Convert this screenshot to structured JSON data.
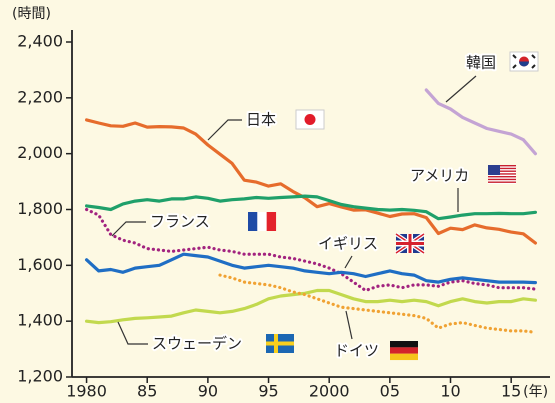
{
  "chart_data": {
    "type": "line",
    "y_label": "(時間)",
    "x_label": "(年)",
    "xlim": [
      1978.8,
      2018.2
    ],
    "ylim": [
      1200,
      2400
    ],
    "xticks": [
      1980,
      {
        "value": 1985,
        "label": "85"
      },
      {
        "value": 1990,
        "label": "90"
      },
      {
        "value": 1995,
        "label": "95"
      },
      2000,
      {
        "value": 2005,
        "label": "05"
      },
      {
        "value": 2010,
        "label": "10"
      },
      {
        "value": 2015,
        "label": "15"
      }
    ],
    "yticks": [
      {
        "value": 1200,
        "label": "1,200"
      },
      {
        "value": 1400,
        "label": "1,400"
      },
      {
        "value": 1600,
        "label": "1,600"
      },
      {
        "value": 1800,
        "label": "1,800"
      },
      {
        "value": 2000,
        "label": "2,000"
      },
      {
        "value": 2200,
        "label": "2,200"
      },
      {
        "value": 2400,
        "label": "2,400"
      }
    ],
    "x": [
      1980,
      1981,
      1982,
      1983,
      1984,
      1985,
      1986,
      1987,
      1988,
      1989,
      1990,
      1991,
      1992,
      1993,
      1994,
      1995,
      1996,
      1997,
      1998,
      1999,
      2000,
      2001,
      2002,
      2003,
      2004,
      2005,
      2006,
      2007,
      2008,
      2009,
      2010,
      2011,
      2012,
      2013,
      2014,
      2015,
      2016,
      2017
    ],
    "series": [
      {
        "name": "日本",
        "color": "#e66c2c",
        "style": "solid",
        "values": [
          2121,
          2110,
          2100,
          2098,
          2110,
          2095,
          2097,
          2096,
          2092,
          2070,
          2031,
          1998,
          1965,
          1905,
          1898,
          1884,
          1892,
          1865,
          1842,
          1810,
          1821,
          1809,
          1798,
          1799,
          1787,
          1775,
          1784,
          1785,
          1771,
          1714,
          1733,
          1728,
          1745,
          1734,
          1729,
          1719,
          1713,
          1680
        ]
      },
      {
        "name": "アメリカ",
        "color": "#1fa06a",
        "style": "solid",
        "values": [
          1813,
          1807,
          1800,
          1820,
          1830,
          1835,
          1830,
          1838,
          1838,
          1845,
          1840,
          1830,
          1835,
          1838,
          1843,
          1840,
          1843,
          1845,
          1848,
          1845,
          1832,
          1818,
          1810,
          1805,
          1800,
          1798,
          1800,
          1797,
          1792,
          1767,
          1773,
          1780,
          1785,
          1785,
          1786,
          1785,
          1785,
          1790
        ]
      },
      {
        "name": "フランス",
        "color": "#a2237f",
        "style": "dotted",
        "values": [
          1800,
          1780,
          1710,
          1690,
          1680,
          1660,
          1655,
          1650,
          1655,
          1660,
          1665,
          1655,
          1650,
          1640,
          1640,
          1640,
          1630,
          1625,
          1615,
          1605,
          1590,
          1570,
          1540,
          1510,
          1525,
          1530,
          1520,
          1530,
          1530,
          1525,
          1540,
          1545,
          1535,
          1530,
          1520,
          1520,
          1520,
          1515
        ]
      },
      {
        "name": "イギリス",
        "color": "#1f6ec4",
        "style": "solid",
        "values": [
          1620,
          1580,
          1585,
          1575,
          1590,
          1595,
          1600,
          1620,
          1640,
          1635,
          1630,
          1615,
          1600,
          1590,
          1595,
          1600,
          1595,
          1590,
          1580,
          1575,
          1570,
          1575,
          1570,
          1560,
          1570,
          1580,
          1570,
          1565,
          1545,
          1540,
          1550,
          1555,
          1550,
          1545,
          1540,
          1540,
          1540,
          1538
        ]
      },
      {
        "name": "スウェーデン",
        "color": "#c2d94e",
        "style": "solid",
        "values": [
          1400,
          1395,
          1398,
          1405,
          1410,
          1412,
          1415,
          1418,
          1430,
          1440,
          1435,
          1430,
          1435,
          1445,
          1460,
          1480,
          1490,
          1495,
          1500,
          1510,
          1510,
          1495,
          1480,
          1470,
          1470,
          1475,
          1470,
          1475,
          1470,
          1455,
          1470,
          1480,
          1470,
          1465,
          1470,
          1470,
          1480,
          1475
        ]
      },
      {
        "name": "ドイツ",
        "color": "#f0a233",
        "style": "dotted",
        "values": [
          null,
          null,
          null,
          null,
          null,
          null,
          null,
          null,
          null,
          null,
          null,
          1565,
          1555,
          1540,
          1535,
          1530,
          1520,
          1505,
          1495,
          1480,
          1465,
          1450,
          1445,
          1440,
          1435,
          1430,
          1425,
          1420,
          1410,
          1375,
          1390,
          1395,
          1385,
          1375,
          1370,
          1365,
          1365,
          1360
        ]
      },
      {
        "name": "韓国",
        "color": "#c4a4d4",
        "style": "solid",
        "values": [
          null,
          null,
          null,
          null,
          null,
          null,
          null,
          null,
          null,
          null,
          null,
          null,
          null,
          null,
          null,
          null,
          null,
          null,
          null,
          null,
          null,
          null,
          null,
          null,
          null,
          null,
          null,
          null,
          2228,
          2180,
          2160,
          2130,
          2110,
          2090,
          2080,
          2070,
          2050,
          2000
        ]
      }
    ]
  }
}
